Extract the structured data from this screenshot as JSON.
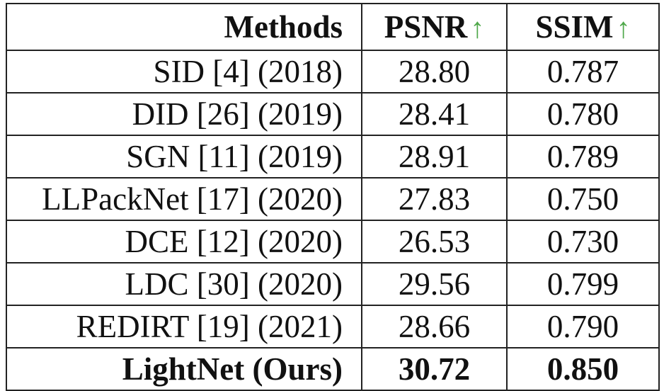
{
  "table": {
    "headers": {
      "method": "Methods",
      "psnr": "PSNR",
      "ssim": "SSIM",
      "arrow": "↑"
    },
    "colors": {
      "arrow": "#4fa84a"
    },
    "rows": [
      {
        "method": "SID [4] (2018)",
        "psnr": "28.80",
        "ssim": "0.787"
      },
      {
        "method": "DID [26] (2019)",
        "psnr": "28.41",
        "ssim": "0.780"
      },
      {
        "method": "SGN [11] (2019)",
        "psnr": "28.91",
        "ssim": "0.789"
      },
      {
        "method": "LLPackNet [17] (2020)",
        "psnr": "27.83",
        "ssim": "0.750"
      },
      {
        "method": "DCE [12] (2020)",
        "psnr": "26.53",
        "ssim": "0.730"
      },
      {
        "method": "LDC [30] (2020)",
        "psnr": "29.56",
        "ssim": "0.799"
      },
      {
        "method": "REDIRT [19] (2021)",
        "psnr": "28.66",
        "ssim": "0.790"
      },
      {
        "method": "LightNet (Ours)",
        "psnr": "30.72",
        "ssim": "0.850"
      }
    ]
  }
}
